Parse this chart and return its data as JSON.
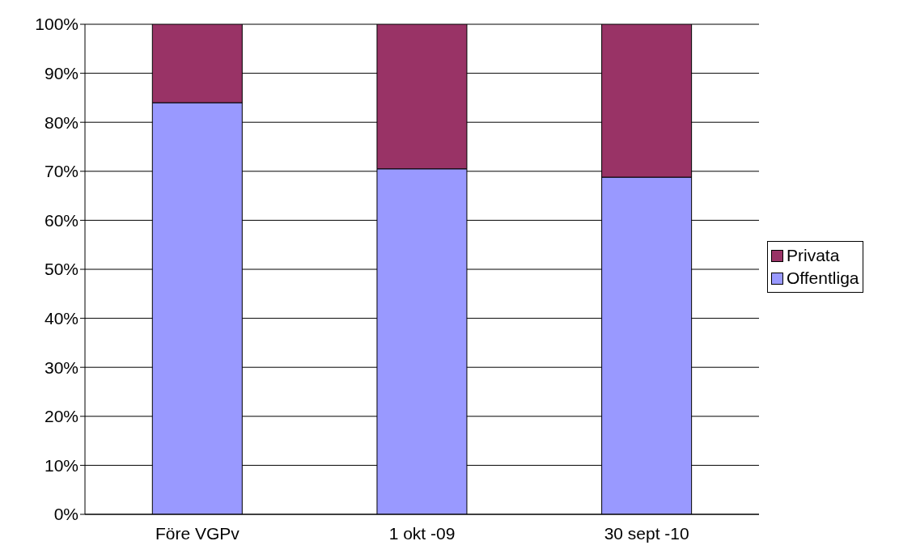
{
  "chart_data": {
    "type": "bar",
    "stacked": true,
    "categories": [
      "Före VGPv",
      "1 okt -09",
      "30 sept -10"
    ],
    "series": [
      {
        "name": "Offentliga",
        "color": "#9999ff",
        "values": [
          84,
          70.5,
          68.8
        ]
      },
      {
        "name": "Privata",
        "color": "#993366",
        "values": [
          16,
          29.5,
          31.2
        ]
      }
    ],
    "ylim": [
      0,
      100
    ],
    "yticks": [
      {
        "value": 0,
        "label": "0%"
      },
      {
        "value": 10,
        "label": "10%"
      },
      {
        "value": 20,
        "label": "20%"
      },
      {
        "value": 30,
        "label": "30%"
      },
      {
        "value": 40,
        "label": "40%"
      },
      {
        "value": 50,
        "label": "50%"
      },
      {
        "value": 60,
        "label": "60%"
      },
      {
        "value": 70,
        "label": "70%"
      },
      {
        "value": 80,
        "label": "80%"
      },
      {
        "value": 90,
        "label": "90%"
      },
      {
        "value": 100,
        "label": "100%"
      }
    ],
    "grid": "y",
    "legend": "right"
  }
}
